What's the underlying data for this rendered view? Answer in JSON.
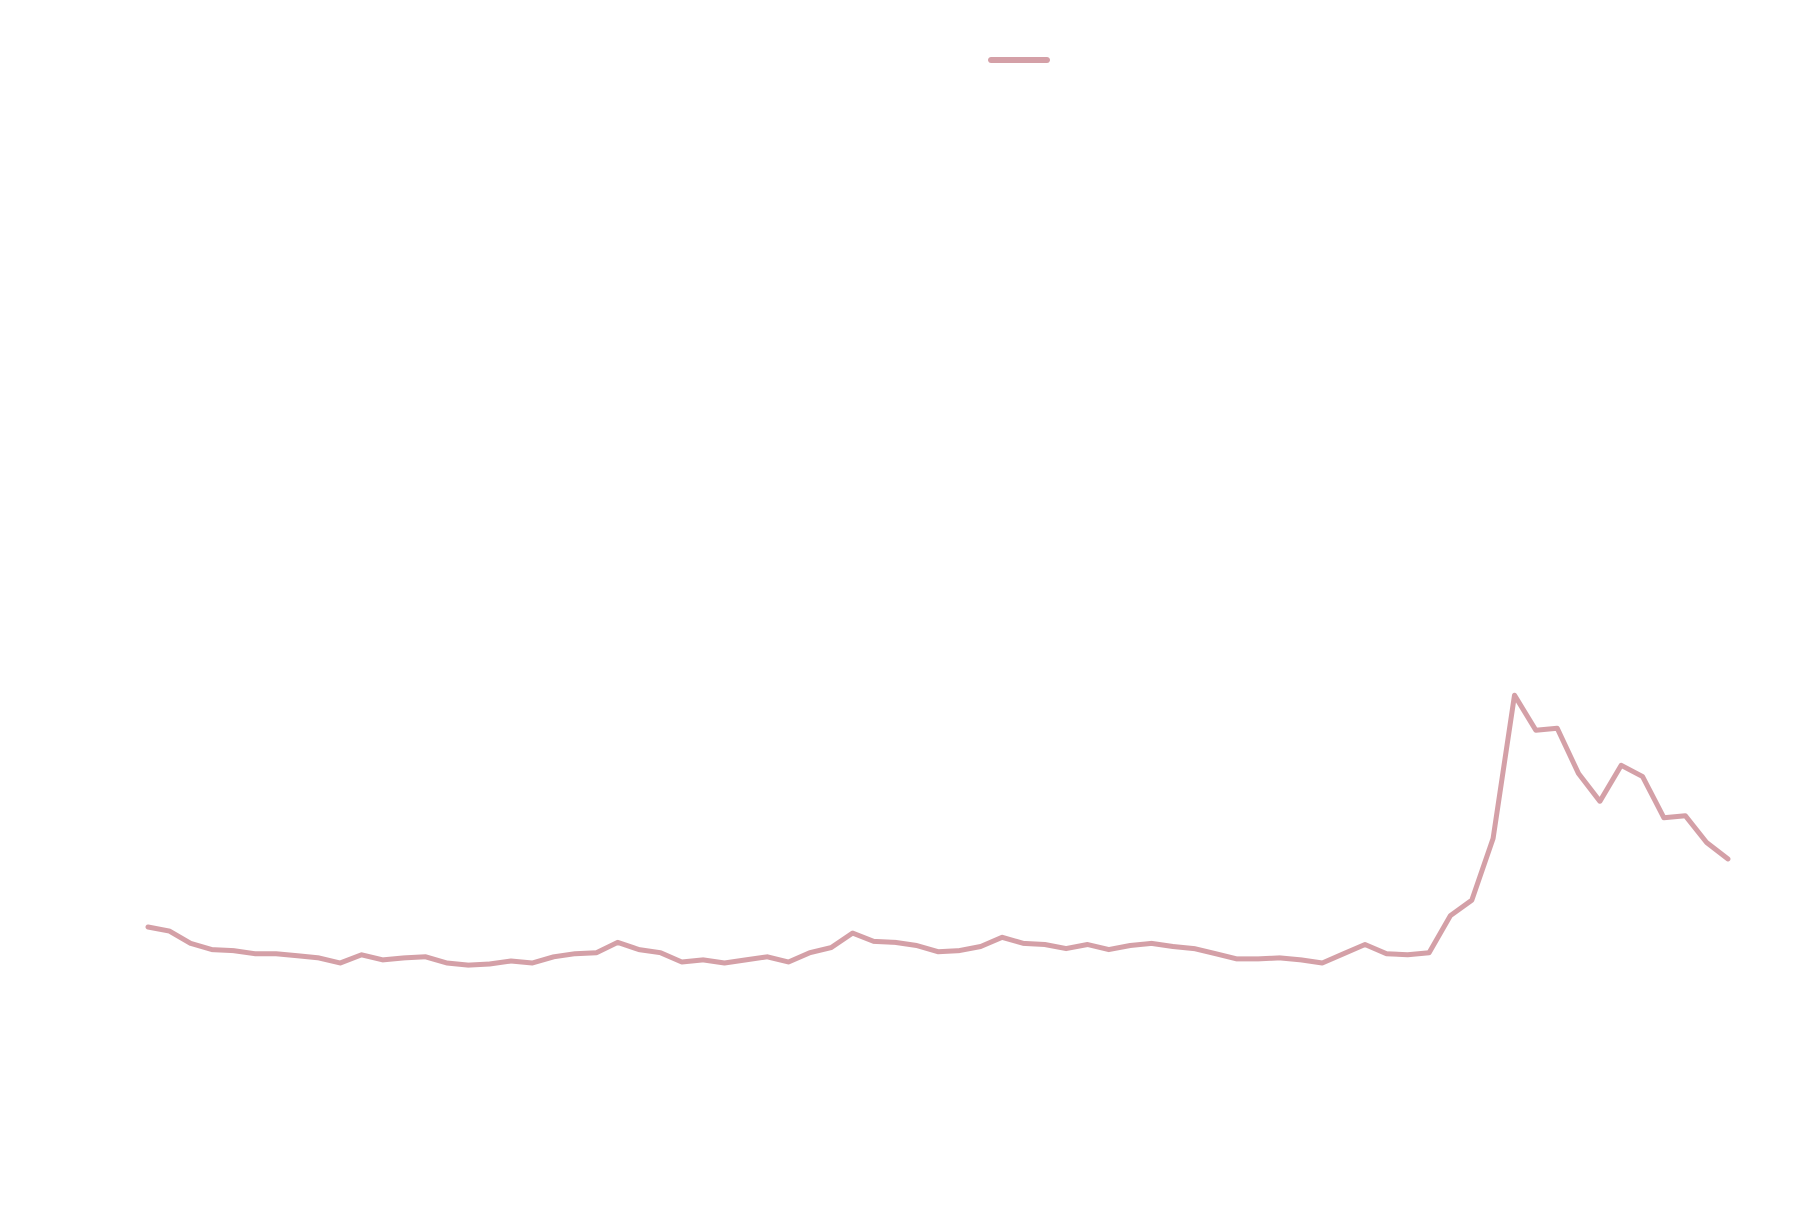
{
  "chart_data": {
    "type": "line",
    "title": "",
    "xlabel": "",
    "ylabel": "",
    "grid": false,
    "axes_visible": false,
    "legend": {
      "placement": "top-center",
      "entries": [
        {
          "name": "",
          "color": "#d4a0a7"
        }
      ]
    },
    "ylim": [
      0,
      100
    ],
    "series": [
      {
        "name": "",
        "color": "#d4a0a7",
        "values": [
          16.8,
          16.4,
          15.2,
          14.6,
          14.5,
          14.2,
          14.2,
          14.0,
          13.8,
          13.3,
          14.1,
          13.6,
          13.8,
          13.9,
          13.3,
          13.1,
          13.2,
          13.5,
          13.3,
          13.9,
          14.2,
          14.3,
          15.3,
          14.6,
          14.3,
          13.4,
          13.6,
          13.3,
          13.6,
          13.9,
          13.4,
          14.3,
          14.8,
          16.2,
          15.4,
          15.3,
          15.0,
          14.4,
          14.5,
          14.9,
          15.8,
          15.2,
          15.1,
          14.7,
          15.1,
          14.6,
          15.0,
          15.2,
          14.9,
          14.7,
          14.2,
          13.7,
          13.7,
          13.8,
          13.6,
          13.3,
          14.2,
          15.1,
          14.2,
          14.1,
          14.3,
          17.9,
          19.4,
          25.4,
          39.3,
          35.9,
          36.1,
          31.7,
          29.0,
          32.5,
          31.4,
          27.4,
          27.6,
          25.0,
          23.4
        ]
      }
    ]
  }
}
